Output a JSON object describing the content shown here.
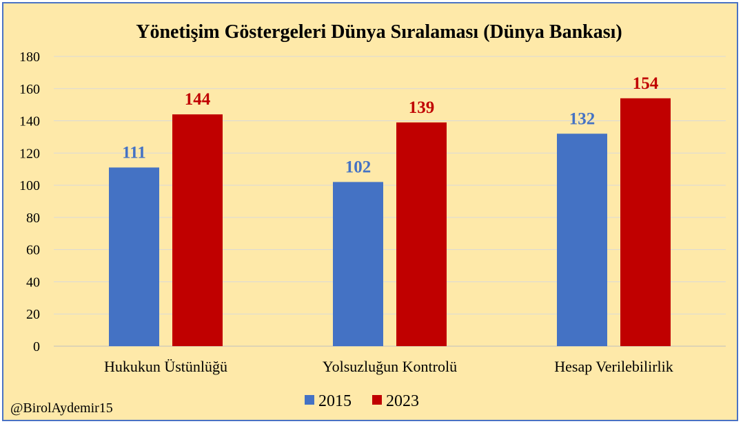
{
  "watermark": "@BirolAydemir15",
  "chart_data": {
    "type": "bar",
    "title": "Yönetişim Göstergeleri Dünya Sıralaması (Dünya Bankası)",
    "xlabel": "",
    "ylabel": "",
    "categories": [
      "Hukukun Üstünlüğü",
      "Yolsuzluğun Kontrolü",
      "Hesap Verilebilirlik"
    ],
    "series": [
      {
        "name": "2015",
        "values": [
          111,
          102,
          132
        ],
        "color": "#4472c4"
      },
      {
        "name": "2023",
        "values": [
          144,
          139,
          154
        ],
        "color": "#c00000"
      }
    ],
    "ylim": [
      0,
      180
    ],
    "yticks": [
      0,
      20,
      40,
      60,
      80,
      100,
      120,
      140,
      160,
      180
    ],
    "grid": true,
    "legend": "bottom"
  }
}
